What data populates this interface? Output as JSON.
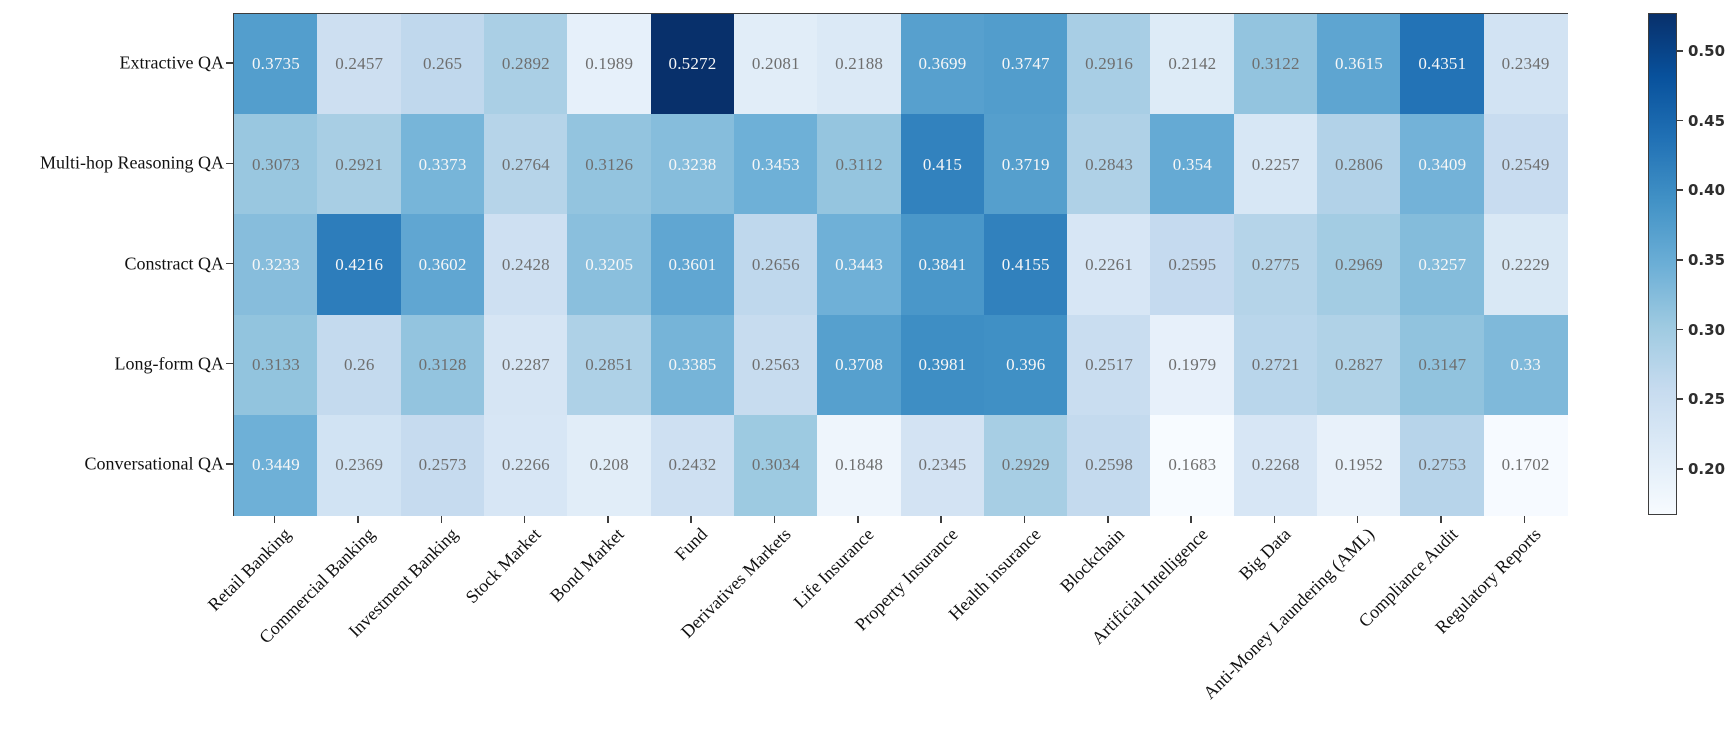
{
  "chart_data": {
    "type": "heatmap",
    "title": "",
    "xlabel": "",
    "ylabel": "",
    "rows": [
      "Extractive QA",
      "Multi-hop Reasoning QA",
      "Constract QA",
      "Long-form QA",
      "Conversational QA"
    ],
    "columns": [
      "Retail Banking",
      "Commercial Banking",
      "Investment Banking",
      "Stock Market",
      "Bond Market",
      "Fund",
      "Derivatives Markets",
      "Life Insurance",
      "Property Insurance",
      "Health insurance",
      "Blockchain",
      "Artificial Intelligence",
      "Big Data",
      "Anti-Money Laundering (AML)",
      "Compliance Audit",
      "Regulatory Reports"
    ],
    "values": [
      [
        0.3735,
        0.2457,
        0.265,
        0.2892,
        0.1989,
        0.5272,
        0.2081,
        0.2188,
        0.3699,
        0.3747,
        0.2916,
        0.2142,
        0.3122,
        0.3615,
        0.4351,
        0.2349
      ],
      [
        0.3073,
        0.2921,
        0.3373,
        0.2764,
        0.3126,
        0.3238,
        0.3453,
        0.3112,
        0.415,
        0.3719,
        0.2843,
        0.354,
        0.2257,
        0.2806,
        0.3409,
        0.2549
      ],
      [
        0.3233,
        0.4216,
        0.3602,
        0.2428,
        0.3205,
        0.3601,
        0.2656,
        0.3443,
        0.3841,
        0.4155,
        0.2261,
        0.2595,
        0.2775,
        0.2969,
        0.3257,
        0.2229
      ],
      [
        0.3133,
        0.26,
        0.3128,
        0.2287,
        0.2851,
        0.3385,
        0.2563,
        0.3708,
        0.3981,
        0.396,
        0.2517,
        0.1979,
        0.2721,
        0.2827,
        0.3147,
        0.33
      ],
      [
        0.3449,
        0.2369,
        0.2573,
        0.2266,
        0.208,
        0.2432,
        0.3034,
        0.1848,
        0.2345,
        0.2929,
        0.2598,
        0.1683,
        0.2268,
        0.1952,
        0.2753,
        0.1702
      ]
    ],
    "vmin": 0.1683,
    "vmax": 0.5272,
    "colormap": "Blues",
    "colormap_stops": [
      "#f7fbff",
      "#deebf7",
      "#c6dbef",
      "#9ecae1",
      "#6baed6",
      "#4292c6",
      "#2171b5",
      "#08519c",
      "#08306b"
    ],
    "colorbar": {
      "position": "right",
      "ticks": [
        0.2,
        0.25,
        0.3,
        0.35,
        0.4,
        0.45,
        0.5
      ],
      "tick_decimals": 2
    },
    "annotation": {
      "white_text_min_value": 0.317,
      "white_text_color": "#f7f7f7",
      "dark_text_color": "#6e6e6e"
    },
    "axis_color": "#3d3d3d",
    "label_color": "#111111",
    "background": "#ffffff",
    "grid": false,
    "legend": false,
    "x_tick_rotation_deg": 45
  }
}
